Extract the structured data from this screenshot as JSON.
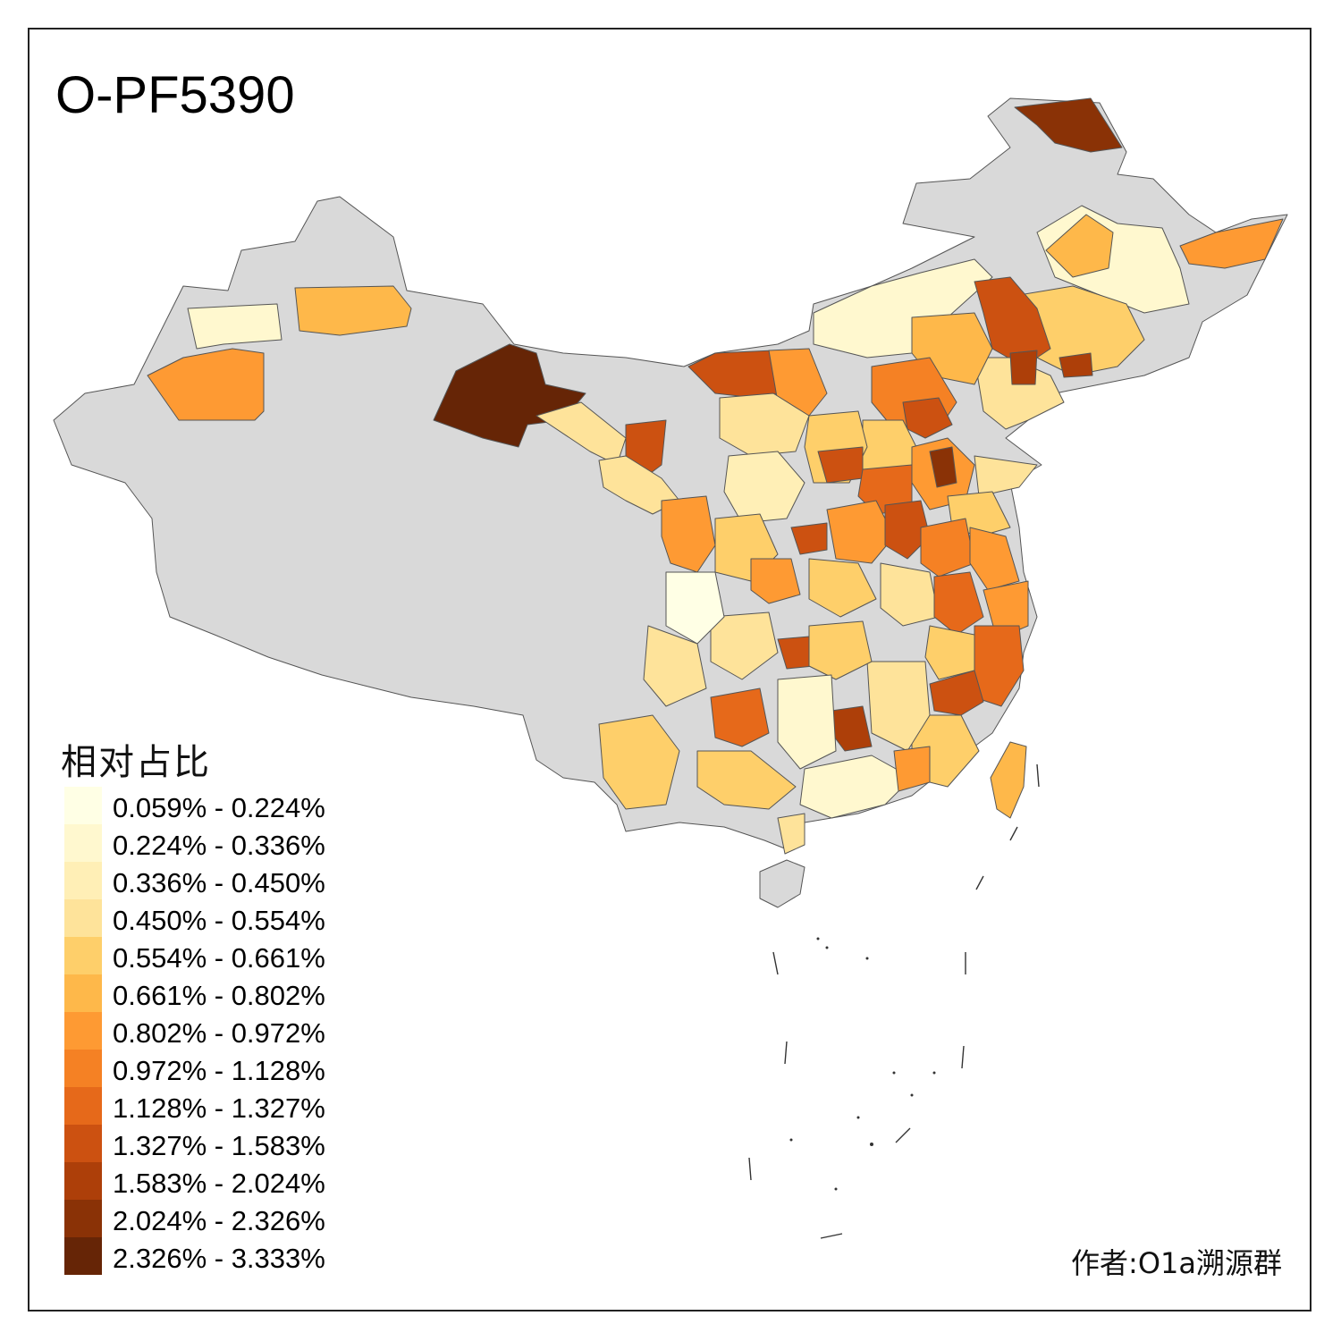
{
  "title": "O-PF5390",
  "legend": {
    "title": "相对占比",
    "items": [
      {
        "label": "0.059% - 0.224%",
        "color": "#ffffe5"
      },
      {
        "label": "0.224% - 0.336%",
        "color": "#fff8cf"
      },
      {
        "label": "0.336% - 0.450%",
        "color": "#ffefb6"
      },
      {
        "label": "0.450% - 0.554%",
        "color": "#fee39a"
      },
      {
        "label": "0.554% - 0.661%",
        "color": "#fecf6a"
      },
      {
        "label": "0.661% - 0.802%",
        "color": "#feb84a"
      },
      {
        "label": "0.802% - 0.972%",
        "color": "#fe9a33"
      },
      {
        "label": "0.972% - 1.128%",
        "color": "#f58124"
      },
      {
        "label": "1.128% - 1.327%",
        "color": "#e6691a"
      },
      {
        "label": "1.327% - 1.583%",
        "color": "#cc5111"
      },
      {
        "label": "1.583% - 2.024%",
        "color": "#ad3f09"
      },
      {
        "label": "2.024% - 2.326%",
        "color": "#8a3206"
      },
      {
        "label": "2.326% - 3.333%",
        "color": "#662506"
      }
    ]
  },
  "no_data_color": "#d9d9d9",
  "author": "作者:O1a溯源群"
}
